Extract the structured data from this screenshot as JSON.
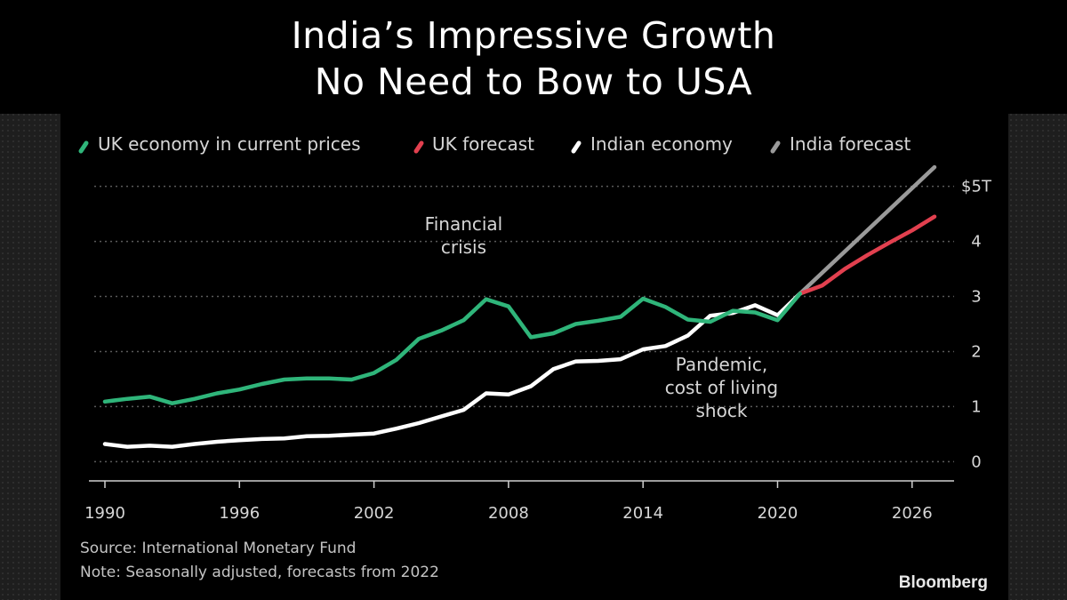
{
  "header": {
    "title_line1": "India’s Impressive Growth",
    "title_line2": "No Need to Bow to USA"
  },
  "chart_data": {
    "type": "line",
    "legend": [
      {
        "name": "UK economy in current prices",
        "color": "#2fb57a"
      },
      {
        "name": "UK forecast",
        "color": "#e2404f"
      },
      {
        "name": "Indian economy",
        "color": "#ffffff"
      },
      {
        "name": "India forecast",
        "color": "#9a9a9a"
      }
    ],
    "series": [
      {
        "name": "UK economy in current prices",
        "color": "#2fb57a",
        "x": [
          1990,
          1991,
          1992,
          1993,
          1994,
          1995,
          1996,
          1997,
          1998,
          1999,
          2000,
          2001,
          2002,
          2003,
          2004,
          2005,
          2006,
          2007,
          2008,
          2009,
          2010,
          2011,
          2012,
          2013,
          2014,
          2015,
          2016,
          2017,
          2018,
          2019,
          2020,
          2021
        ],
        "values": [
          1.09,
          1.14,
          1.18,
          1.06,
          1.14,
          1.24,
          1.31,
          1.41,
          1.49,
          1.51,
          1.51,
          1.49,
          1.61,
          1.85,
          2.23,
          2.38,
          2.57,
          2.95,
          2.82,
          2.26,
          2.33,
          2.5,
          2.56,
          2.63,
          2.96,
          2.81,
          2.58,
          2.54,
          2.74,
          2.71,
          2.57,
          3.05
        ]
      },
      {
        "name": "UK forecast",
        "color": "#e2404f",
        "x": [
          2021,
          2022,
          2023,
          2024,
          2025,
          2026,
          2027
        ],
        "values": [
          3.05,
          3.2,
          3.5,
          3.75,
          3.98,
          4.2,
          4.45
        ]
      },
      {
        "name": "Indian economy",
        "color": "#ffffff",
        "x": [
          1990,
          1991,
          1992,
          1993,
          1994,
          1995,
          1996,
          1997,
          1998,
          1999,
          2000,
          2001,
          2002,
          2003,
          2004,
          2005,
          2006,
          2007,
          2008,
          2009,
          2010,
          2011,
          2012,
          2013,
          2014,
          2015,
          2016,
          2017,
          2018,
          2019,
          2020,
          2021
        ],
        "values": [
          0.32,
          0.27,
          0.29,
          0.27,
          0.32,
          0.36,
          0.39,
          0.41,
          0.42,
          0.46,
          0.47,
          0.49,
          0.51,
          0.6,
          0.7,
          0.82,
          0.94,
          1.24,
          1.22,
          1.37,
          1.68,
          1.82,
          1.83,
          1.86,
          2.04,
          2.1,
          2.29,
          2.65,
          2.7,
          2.84,
          2.66,
          3.05
        ]
      },
      {
        "name": "India forecast",
        "color": "#9a9a9a",
        "x": [
          2021,
          2027
        ],
        "values": [
          3.05,
          5.35
        ]
      }
    ],
    "x_ticks": [
      "1990",
      "1996",
      "2002",
      "2008",
      "2014",
      "2020",
      "2026"
    ],
    "x_tick_values": [
      1990,
      1996,
      2002,
      2008,
      2014,
      2020,
      2026
    ],
    "y_ticks": [
      "0",
      "1",
      "2",
      "3",
      "4",
      "$5T"
    ],
    "y_tick_values": [
      0,
      1,
      2,
      3,
      4,
      5
    ],
    "xlim": [
      1990,
      2027
    ],
    "ylim": [
      -0.35,
      5.35
    ],
    "gridlines": "horizontal dotted",
    "annotations": [
      {
        "lines": [
          "Financial",
          "crisis"
        ],
        "anchor_x": 2006,
        "anchor_y": 4.2
      },
      {
        "lines": [
          "Pandemic,",
          "cost of living",
          "shock"
        ],
        "anchor_x": 2017.5,
        "anchor_y": 1.65
      }
    ],
    "source": "Source: International Monetary Fund",
    "note": "Note: Seasonally adjusted, forecasts from 2022",
    "brand": "Bloomberg"
  }
}
